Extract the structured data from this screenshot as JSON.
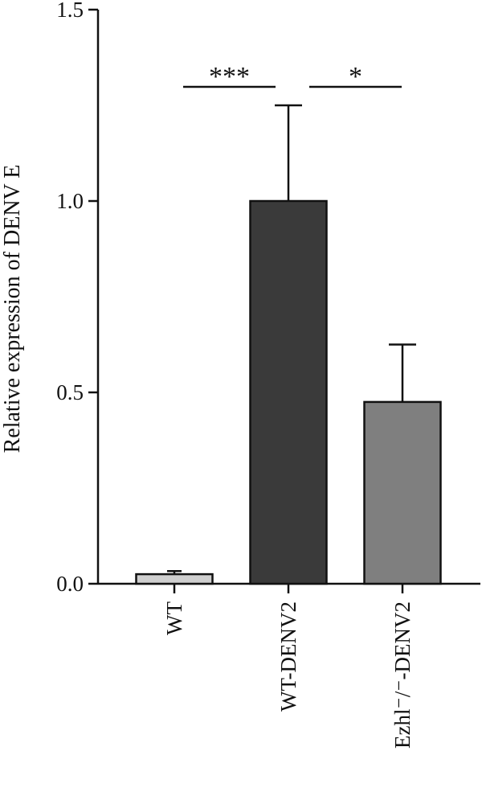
{
  "chart_data": {
    "type": "bar",
    "categories": [
      "WT",
      "WT-DENV2",
      "Ezhl⁻/⁻-DENV2"
    ],
    "values": [
      0.025,
      1.0,
      0.475
    ],
    "errors": [
      0.008,
      0.25,
      0.15
    ],
    "colors": [
      "#cfcfcf",
      "#3a3a3a",
      "#7f7f7f"
    ],
    "ylabel": "Relative expression of DENV E",
    "ylim": [
      0,
      1.5
    ],
    "yticks": [
      0.0,
      0.5,
      1.0,
      1.5
    ],
    "ytick_labels": [
      "0.0",
      "0.5",
      "1.0",
      "1.5"
    ],
    "significance": [
      {
        "from": 0,
        "to": 1,
        "label": "***",
        "y": 1.3
      },
      {
        "from": 1,
        "to": 2,
        "label": "*",
        "y": 1.3
      }
    ],
    "grid": false
  }
}
